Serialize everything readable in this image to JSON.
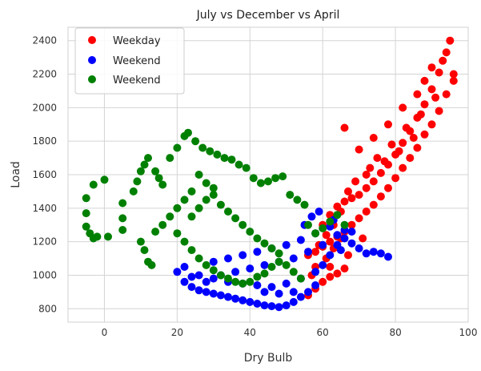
{
  "chart_data": {
    "type": "scatter",
    "title": "July vs December vs April",
    "xlabel": "Dry Bulb",
    "ylabel": "Load",
    "xlim": [
      -10,
      100
    ],
    "ylim": [
      720,
      2480
    ],
    "xticks": [
      0,
      20,
      40,
      60,
      80,
      100
    ],
    "yticks": [
      800,
      1000,
      1200,
      1400,
      1600,
      1800,
      2000,
      2200,
      2400
    ],
    "grid": true,
    "legend_position": "top-left",
    "series": [
      {
        "name": "Weekday",
        "color": "#ff0000",
        "points": [
          [
            56,
            880
          ],
          [
            58,
            920
          ],
          [
            60,
            960
          ],
          [
            62,
            990
          ],
          [
            64,
            1010
          ],
          [
            66,
            1040
          ],
          [
            58,
            1050
          ],
          [
            61,
            1100
          ],
          [
            63,
            1160
          ],
          [
            65,
            1220
          ],
          [
            60,
            1300
          ],
          [
            62,
            1360
          ],
          [
            64,
            1410
          ],
          [
            66,
            1440
          ],
          [
            68,
            1460
          ],
          [
            70,
            1480
          ],
          [
            72,
            1520
          ],
          [
            74,
            1560
          ],
          [
            76,
            1610
          ],
          [
            78,
            1660
          ],
          [
            80,
            1720
          ],
          [
            82,
            1790
          ],
          [
            84,
            1860
          ],
          [
            86,
            1940
          ],
          [
            88,
            2020
          ],
          [
            90,
            2110
          ],
          [
            92,
            2210
          ],
          [
            94,
            2330
          ],
          [
            95,
            2400
          ],
          [
            96,
            2160
          ],
          [
            94,
            2080
          ],
          [
            92,
            1980
          ],
          [
            90,
            1900
          ],
          [
            88,
            1840
          ],
          [
            86,
            1760
          ],
          [
            84,
            1700
          ],
          [
            82,
            1640
          ],
          [
            80,
            1580
          ],
          [
            78,
            1520
          ],
          [
            76,
            1470
          ],
          [
            74,
            1420
          ],
          [
            72,
            1380
          ],
          [
            70,
            1340
          ],
          [
            68,
            1300
          ],
          [
            66,
            1260
          ],
          [
            64,
            1230
          ],
          [
            62,
            1200
          ],
          [
            60,
            1170
          ],
          [
            58,
            1140
          ],
          [
            56,
            1120
          ],
          [
            66,
            1880
          ],
          [
            70,
            1750
          ],
          [
            74,
            1820
          ],
          [
            78,
            1900
          ],
          [
            82,
            2000
          ],
          [
            86,
            2080
          ],
          [
            90,
            2240
          ],
          [
            93,
            2280
          ],
          [
            96,
            2200
          ],
          [
            88,
            2160
          ],
          [
            72,
            1600
          ],
          [
            75,
            1700
          ],
          [
            79,
            1780
          ],
          [
            83,
            1880
          ],
          [
            87,
            1960
          ],
          [
            91,
            2060
          ],
          [
            85,
            1820
          ],
          [
            81,
            1740
          ],
          [
            77,
            1680
          ],
          [
            73,
            1640
          ],
          [
            69,
            1560
          ],
          [
            67,
            1500
          ],
          [
            65,
            1380
          ],
          [
            63,
            1300
          ],
          [
            61,
            1240
          ],
          [
            59,
            1180
          ],
          [
            57,
            1000
          ],
          [
            62,
            1050
          ],
          [
            67,
            1120
          ],
          [
            71,
            1220
          ]
        ]
      },
      {
        "name": "Weekend",
        "color": "#0000ff",
        "points": [
          [
            20,
            1020
          ],
          [
            22,
            960
          ],
          [
            24,
            930
          ],
          [
            26,
            910
          ],
          [
            28,
            900
          ],
          [
            30,
            890
          ],
          [
            32,
            880
          ],
          [
            34,
            870
          ],
          [
            36,
            860
          ],
          [
            38,
            850
          ],
          [
            40,
            840
          ],
          [
            42,
            830
          ],
          [
            44,
            820
          ],
          [
            46,
            815
          ],
          [
            48,
            810
          ],
          [
            50,
            820
          ],
          [
            52,
            840
          ],
          [
            54,
            870
          ],
          [
            56,
            900
          ],
          [
            58,
            940
          ],
          [
            22,
            1050
          ],
          [
            26,
            1000
          ],
          [
            30,
            980
          ],
          [
            34,
            960
          ],
          [
            38,
            950
          ],
          [
            42,
            940
          ],
          [
            46,
            930
          ],
          [
            50,
            950
          ],
          [
            54,
            980
          ],
          [
            58,
            1020
          ],
          [
            60,
            1060
          ],
          [
            62,
            1120
          ],
          [
            64,
            1180
          ],
          [
            66,
            1220
          ],
          [
            68,
            1190
          ],
          [
            70,
            1160
          ],
          [
            72,
            1130
          ],
          [
            74,
            1140
          ],
          [
            76,
            1130
          ],
          [
            78,
            1110
          ],
          [
            30,
            1080
          ],
          [
            34,
            1100
          ],
          [
            38,
            1120
          ],
          [
            42,
            1140
          ],
          [
            46,
            1160
          ],
          [
            50,
            1180
          ],
          [
            54,
            1210
          ],
          [
            58,
            1250
          ],
          [
            62,
            1290
          ],
          [
            66,
            1270
          ],
          [
            36,
            1020
          ],
          [
            40,
            1040
          ],
          [
            44,
            1060
          ],
          [
            48,
            1080
          ],
          [
            52,
            1100
          ],
          [
            56,
            1140
          ],
          [
            60,
            1180
          ],
          [
            64,
            1240
          ],
          [
            68,
            1260
          ],
          [
            44,
            900
          ],
          [
            48,
            890
          ],
          [
            52,
            900
          ],
          [
            32,
            1000
          ],
          [
            28,
            960
          ],
          [
            24,
            990
          ],
          [
            55,
            1300
          ],
          [
            57,
            1350
          ],
          [
            59,
            1380
          ],
          [
            63,
            1330
          ],
          [
            65,
            1150
          ]
        ]
      },
      {
        "name": "Weekend",
        "color": "#008000",
        "points": [
          [
            -5,
            1460
          ],
          [
            -5,
            1370
          ],
          [
            -5,
            1290
          ],
          [
            -4,
            1250
          ],
          [
            -3,
            1220
          ],
          [
            -2,
            1230
          ],
          [
            -3,
            1540
          ],
          [
            0,
            1570
          ],
          [
            1,
            1230
          ],
          [
            5,
            1270
          ],
          [
            5,
            1340
          ],
          [
            5,
            1430
          ],
          [
            8,
            1500
          ],
          [
            9,
            1560
          ],
          [
            10,
            1620
          ],
          [
            11,
            1660
          ],
          [
            12,
            1700
          ],
          [
            14,
            1620
          ],
          [
            15,
            1580
          ],
          [
            16,
            1540
          ],
          [
            10,
            1200
          ],
          [
            11,
            1150
          ],
          [
            12,
            1080
          ],
          [
            13,
            1060
          ],
          [
            14,
            1260
          ],
          [
            16,
            1300
          ],
          [
            18,
            1350
          ],
          [
            20,
            1400
          ],
          [
            22,
            1450
          ],
          [
            24,
            1500
          ],
          [
            18,
            1700
          ],
          [
            20,
            1760
          ],
          [
            22,
            1830
          ],
          [
            23,
            1850
          ],
          [
            25,
            1800
          ],
          [
            27,
            1760
          ],
          [
            29,
            1740
          ],
          [
            31,
            1720
          ],
          [
            33,
            1700
          ],
          [
            35,
            1690
          ],
          [
            37,
            1660
          ],
          [
            39,
            1640
          ],
          [
            41,
            1580
          ],
          [
            43,
            1550
          ],
          [
            45,
            1560
          ],
          [
            47,
            1580
          ],
          [
            49,
            1590
          ],
          [
            51,
            1480
          ],
          [
            53,
            1450
          ],
          [
            55,
            1420
          ],
          [
            20,
            1250
          ],
          [
            22,
            1200
          ],
          [
            24,
            1150
          ],
          [
            26,
            1100
          ],
          [
            28,
            1060
          ],
          [
            30,
            1030
          ],
          [
            32,
            1000
          ],
          [
            34,
            980
          ],
          [
            36,
            960
          ],
          [
            38,
            950
          ],
          [
            40,
            960
          ],
          [
            42,
            990
          ],
          [
            44,
            1010
          ],
          [
            46,
            1050
          ],
          [
            48,
            1080
          ],
          [
            50,
            1060
          ],
          [
            52,
            1020
          ],
          [
            54,
            980
          ],
          [
            56,
            1300
          ],
          [
            58,
            1250
          ],
          [
            60,
            1280
          ],
          [
            62,
            1320
          ],
          [
            64,
            1360
          ],
          [
            66,
            1300
          ],
          [
            24,
            1350
          ],
          [
            26,
            1400
          ],
          [
            28,
            1450
          ],
          [
            30,
            1480
          ],
          [
            32,
            1420
          ],
          [
            34,
            1380
          ],
          [
            36,
            1340
          ],
          [
            38,
            1300
          ],
          [
            40,
            1260
          ],
          [
            42,
            1220
          ],
          [
            44,
            1190
          ],
          [
            46,
            1160
          ],
          [
            48,
            1130
          ],
          [
            26,
            1600
          ],
          [
            28,
            1550
          ],
          [
            30,
            1520
          ]
        ]
      }
    ]
  }
}
